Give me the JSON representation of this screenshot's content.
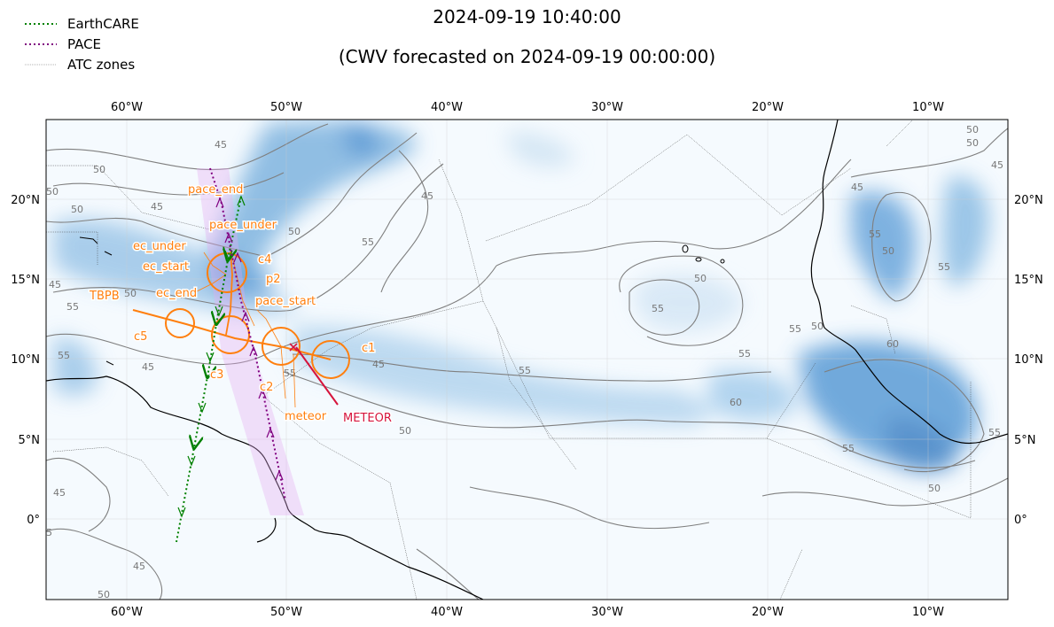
{
  "title": "2024-09-19 10:40:00",
  "subtitle": "(CWV forecasted on 2024-09-19 00:00:00)",
  "legend": [
    {
      "label": "EarthCARE",
      "color": "#008000",
      "style": "dotted"
    },
    {
      "label": "PACE",
      "color": "#800080",
      "style": "dotted"
    },
    {
      "label": "ATC zones",
      "color": "#666666",
      "style": "thin"
    }
  ],
  "axes": {
    "lon_ticks": [
      "60°W",
      "50°W",
      "40°W",
      "30°W",
      "20°W",
      "10°W"
    ],
    "lat_ticks": [
      "20°N",
      "15°N",
      "10°N",
      "5°N",
      "0°"
    ]
  },
  "contour_labels": [
    "45",
    "50",
    "50",
    "45",
    "55",
    "50",
    "55",
    "50",
    "45",
    "55",
    "45",
    "45",
    "55",
    "50",
    "45",
    "55",
    "55",
    "50",
    "55",
    "60",
    "45",
    "50",
    "55",
    "50",
    "55",
    "45",
    "50",
    "50",
    "45",
    "45",
    "55",
    "60",
    "50",
    "55",
    "55",
    "55",
    "50",
    "50"
  ],
  "annotations": {
    "pace_end": "pace_end",
    "pace_under": "pace_under",
    "ec_under": "ec_under",
    "ec_start": "ec_start",
    "c4": "c4",
    "p2": "p2",
    "tbpb": "TBPB",
    "ec_end": "ec_end",
    "pace_start": "pace_start",
    "c5": "c5",
    "c1": "c1",
    "c3": "c3",
    "c2": "c2",
    "meteor": "meteor",
    "meteor_track": "METEOR"
  },
  "colors": {
    "earthcare": "#008000",
    "pace": "#800080",
    "flight": "#ff7f0e",
    "meteor": "#d6143c",
    "coast": "#000000",
    "contour": "#777777",
    "cwv_base": "#f5fafe",
    "cwv_high": "#4a90cf"
  }
}
